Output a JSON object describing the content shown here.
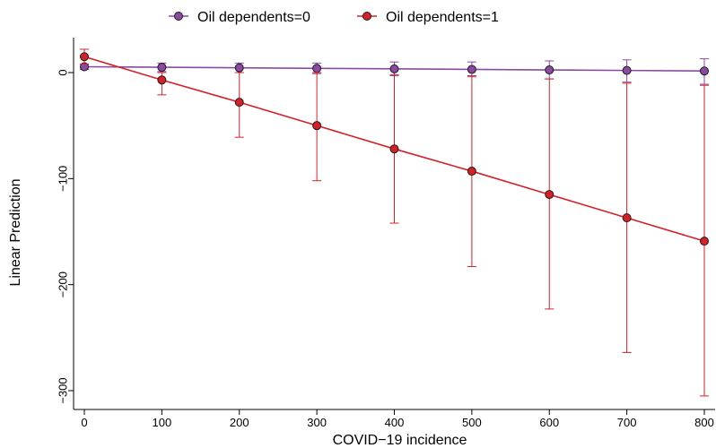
{
  "chart_data": {
    "type": "line",
    "title": "",
    "xlabel": "COVID−19 incidence",
    "ylabel": "Linear Prediction",
    "x": [
      0,
      100,
      200,
      300,
      400,
      500,
      600,
      700,
      800
    ],
    "x_ticks": [
      0,
      100,
      200,
      300,
      400,
      500,
      600,
      700,
      800
    ],
    "x_tick_labels": [
      "0",
      "100",
      "200",
      "300",
      "400",
      "500",
      "600",
      "700",
      "800"
    ],
    "y_ticks": [
      0,
      -100,
      -200,
      -300
    ],
    "y_tick_labels": [
      "0",
      "−100",
      "−200",
      "−300"
    ],
    "xlim": [
      -10,
      810
    ],
    "ylim": [
      -317,
      33
    ],
    "grid": false,
    "legend_position": "top",
    "series": [
      {
        "name": "Oil dependents=0",
        "color": "#8b4aa2",
        "values": [
          5.5,
          5,
          4.5,
          4,
          3.5,
          3,
          2.5,
          2,
          1.5
        ],
        "ci_low": [
          3,
          1,
          0,
          -1,
          -3,
          -4,
          -6,
          -9,
          -11
        ],
        "ci_high": [
          8,
          9,
          9,
          9,
          10,
          10,
          11,
          12,
          13
        ]
      },
      {
        "name": "Oil dependents=1",
        "color": "#d62027",
        "values": [
          15,
          -7,
          -28,
          -50,
          -72,
          -93,
          -115,
          -137,
          -159
        ],
        "ci_low": [
          8,
          -21,
          -61,
          -102,
          -142,
          -183,
          -223,
          -264,
          -305
        ],
        "ci_high": [
          22,
          0,
          0,
          0,
          -2,
          -3,
          -6,
          -10,
          -12
        ]
      }
    ]
  }
}
